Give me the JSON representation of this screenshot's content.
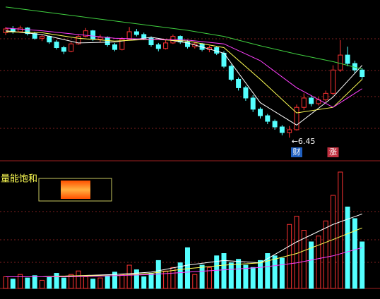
{
  "chart_data": [
    {
      "type": "candlestick",
      "ylim": [
        6.0,
        9.4
      ],
      "up_color": "#ff3232",
      "down_color": "#54ffff",
      "open": [
        8.7,
        8.78,
        8.72,
        8.8,
        8.68,
        8.58,
        8.62,
        8.5,
        8.38,
        8.3,
        8.46,
        8.62,
        8.74,
        8.56,
        8.6,
        8.44,
        8.34,
        8.56,
        8.72,
        8.66,
        8.58,
        8.44,
        8.36,
        8.48,
        8.62,
        8.5,
        8.4,
        8.46,
        8.34,
        8.38,
        8.26,
        7.98,
        7.7,
        7.52,
        7.3,
        7.06,
        6.92,
        6.8,
        6.68,
        6.56,
        6.62,
        7.1,
        7.3,
        7.18,
        7.26,
        7.4,
        7.9,
        8.22,
        8.04,
        7.9
      ],
      "close": [
        8.78,
        8.72,
        8.8,
        8.68,
        8.58,
        8.62,
        8.5,
        8.38,
        8.3,
        8.46,
        8.62,
        8.74,
        8.56,
        8.6,
        8.44,
        8.34,
        8.56,
        8.72,
        8.66,
        8.58,
        8.44,
        8.36,
        8.48,
        8.62,
        8.5,
        8.4,
        8.46,
        8.34,
        8.38,
        8.26,
        7.98,
        7.7,
        7.52,
        7.3,
        7.06,
        6.92,
        6.8,
        6.68,
        6.56,
        6.62,
        7.1,
        7.3,
        7.18,
        7.26,
        7.4,
        7.9,
        8.22,
        8.04,
        7.9,
        7.76
      ],
      "high": [
        8.82,
        8.84,
        8.85,
        8.82,
        8.72,
        8.66,
        8.64,
        8.54,
        8.42,
        8.5,
        8.66,
        8.8,
        8.76,
        8.66,
        8.62,
        8.48,
        8.6,
        8.82,
        8.78,
        8.7,
        8.62,
        8.48,
        8.56,
        8.66,
        8.64,
        8.54,
        8.5,
        8.48,
        8.42,
        8.4,
        8.3,
        8.02,
        7.74,
        7.56,
        7.36,
        7.1,
        6.96,
        6.84,
        6.72,
        6.7,
        7.16,
        7.4,
        7.34,
        7.32,
        7.46,
        8.0,
        8.54,
        8.4,
        8.1,
        7.94
      ],
      "low": [
        8.65,
        8.68,
        8.7,
        8.64,
        8.55,
        8.52,
        8.46,
        8.34,
        8.24,
        8.28,
        8.44,
        8.6,
        8.52,
        8.5,
        8.4,
        8.3,
        8.32,
        8.54,
        8.62,
        8.54,
        8.4,
        8.3,
        8.34,
        8.46,
        8.46,
        8.36,
        8.36,
        8.3,
        8.28,
        8.22,
        7.94,
        7.66,
        7.46,
        7.24,
        7.0,
        6.86,
        6.74,
        6.62,
        6.5,
        6.45,
        6.6,
        7.04,
        7.12,
        7.14,
        7.22,
        7.36,
        7.86,
        7.98,
        7.82,
        7.7
      ],
      "line_x": [
        0,
        5,
        10,
        15,
        20,
        25,
        30,
        35,
        40,
        45,
        49
      ],
      "lines": [
        {
          "color": "#ffffff",
          "values": [
            8.74,
            8.66,
            8.48,
            8.5,
            8.6,
            8.48,
            8.26,
            7.2,
            6.72,
            7.32,
            8.0
          ]
        },
        {
          "color": "#ffff54",
          "values": [
            8.72,
            8.7,
            8.58,
            8.52,
            8.56,
            8.52,
            8.38,
            7.7,
            6.98,
            7.1,
            7.7
          ]
        },
        {
          "color": "#ff40ff",
          "values": [
            8.8,
            8.74,
            8.66,
            8.58,
            8.56,
            8.54,
            8.46,
            8.1,
            7.52,
            7.1,
            7.5
          ]
        },
        {
          "color": "#40d040",
          "values": [
            9.25,
            9.15,
            9.05,
            8.95,
            8.85,
            8.75,
            8.62,
            8.42,
            8.24,
            8.08,
            7.92
          ]
        }
      ],
      "low_marker": {
        "index": 39,
        "value": 6.45,
        "label": "←6.45"
      },
      "tags": [
        {
          "index": 40,
          "text": "财",
          "color": "#2060c0"
        },
        {
          "index": 45,
          "text": "涨",
          "color": "#c03040"
        }
      ]
    },
    {
      "type": "bar",
      "title": "量能饱和",
      "ylim": [
        0,
        100
      ],
      "values": [
        10,
        8,
        12,
        9,
        11,
        7,
        10,
        13,
        9,
        12,
        15,
        10,
        8,
        9,
        11,
        14,
        12,
        20,
        16,
        10,
        13,
        24,
        15,
        18,
        22,
        35,
        12,
        20,
        18,
        28,
        30,
        22,
        25,
        20,
        18,
        24,
        30,
        28,
        26,
        55,
        62,
        50,
        40,
        45,
        58,
        80,
        100,
        70,
        60,
        40
      ],
      "line_x": [
        0,
        5,
        10,
        15,
        20,
        25,
        30,
        35,
        40,
        45,
        49
      ],
      "lines": [
        {
          "color": "#ffffff",
          "values": [
            10,
            10,
            11,
            12,
            14,
            20,
            24,
            22,
            40,
            55,
            64
          ]
        },
        {
          "color": "#ffff54",
          "values": [
            10,
            10,
            11,
            11,
            13,
            17,
            20,
            22,
            30,
            42,
            52
          ]
        },
        {
          "color": "#ff40ff",
          "values": [
            10,
            10,
            10,
            11,
            12,
            14,
            16,
            18,
            22,
            28,
            35
          ]
        }
      ]
    }
  ]
}
